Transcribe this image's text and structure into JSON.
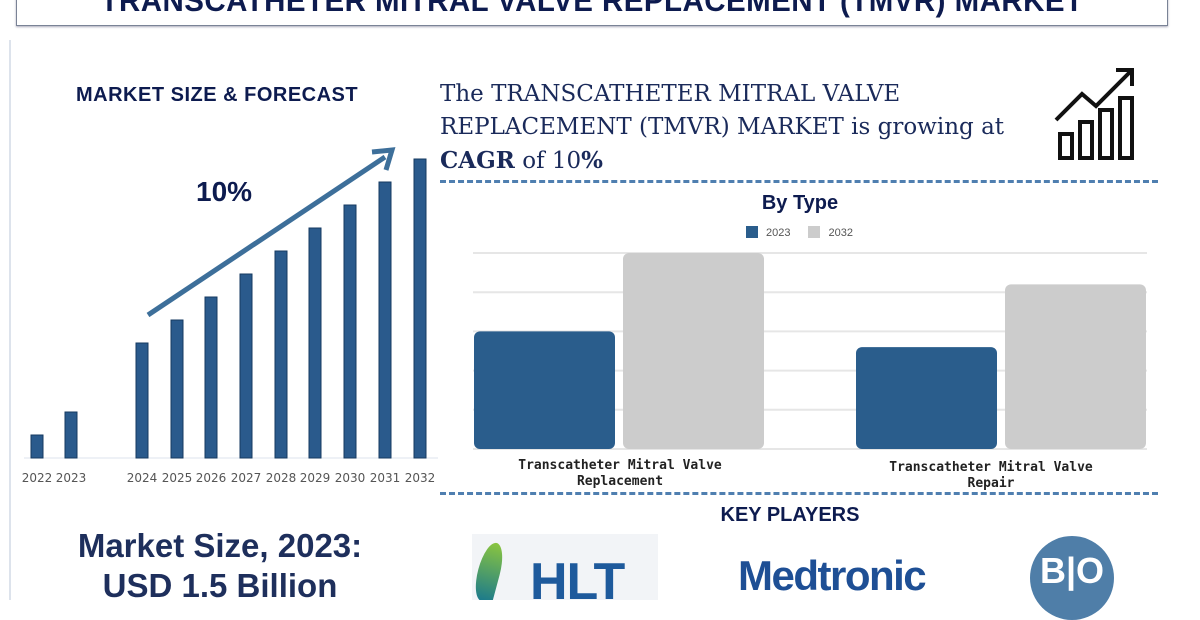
{
  "title": "TRANSCATHETER MITRAL VALVE REPLACEMENT (TMVR) MARKET",
  "forecast": {
    "heading": "MARKET SIZE & FORECAST",
    "cagr_label": "10%"
  },
  "headline": {
    "prefix": "The TRANSCATHETER MITRAL VALVE REPLACEMENT (TMVR) MARKET is growing at ",
    "bold1": "CAGR",
    "mid": " of 10",
    "bold2": "%",
    "icon": "growth-chart-icon"
  },
  "market_size": {
    "line1": "Market Size, 2023:",
    "line2": "USD 1.5 Billion"
  },
  "key_players": {
    "heading": "KEY PLAYERS",
    "logos": [
      "HLT",
      "Medtronic",
      "BO"
    ]
  },
  "colors": {
    "navy": "#0d1b4f",
    "bar": "#2a5a8c",
    "series2023": "#2a5d8c",
    "series2032": "#cccccc",
    "dash": "#4f7fb0"
  },
  "chart_data": [
    {
      "type": "bar",
      "title": "",
      "categories": [
        "2022",
        "2023",
        "2024",
        "2025",
        "2026",
        "2027",
        "2028",
        "2029",
        "2030",
        "2031",
        "2032"
      ],
      "values": [
        1,
        2,
        5,
        6,
        7,
        8,
        9,
        10,
        11,
        12,
        13
      ],
      "annotation": "10%",
      "grid": false
    },
    {
      "type": "bar",
      "title": "By Type",
      "categories": [
        "Transcatheter Mitral Valve Replacement",
        "Transcatheter Mitral Valve Repair"
      ],
      "series": [
        {
          "name": "2023",
          "values": [
            3,
            2.6
          ]
        },
        {
          "name": "2032",
          "values": [
            5,
            4.2
          ]
        }
      ],
      "ylim": [
        0,
        5
      ],
      "grid": true,
      "legend": "top"
    }
  ]
}
